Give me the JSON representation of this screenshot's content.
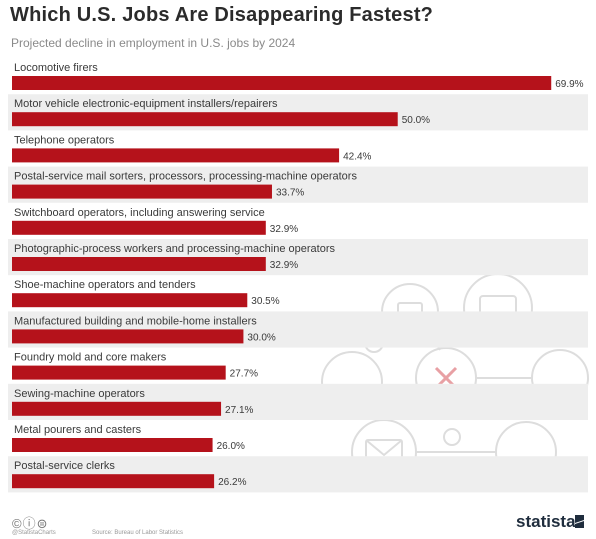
{
  "title": "Which U.S. Jobs Are Disappearing Fastest?",
  "subtitle": "Projected decline in employment in U.S. jobs by 2024",
  "chart_data": {
    "type": "bar",
    "orientation": "horizontal",
    "categories": [
      "Locomotive firers",
      "Motor vehicle electronic-equipment installers/repairers",
      "Telephone operators",
      "Postal-service mail sorters, processors, processing-machine operators",
      "Switchboard operators, including answering service",
      "Photographic-process workers and processing-machine operators",
      "Shoe-machine operators and tenders",
      "Manufactured building and mobile-home installers",
      "Foundry mold and core makers",
      "Sewing-machine operators",
      "Metal pourers and casters",
      "Postal-service clerks"
    ],
    "values": [
      69.9,
      50.0,
      42.4,
      33.7,
      32.9,
      32.9,
      30.5,
      30.0,
      27.7,
      27.1,
      26.0,
      26.2
    ],
    "value_labels": [
      "69.9%",
      "50.0%",
      "42.4%",
      "33.7%",
      "32.9%",
      "32.9%",
      "30.5%",
      "30.0%",
      "27.7%",
      "27.1%",
      "26.0%",
      "26.2%"
    ],
    "xlim": [
      0,
      70
    ],
    "grid": false,
    "bar_color": "#b5121b",
    "stripe_color": "#eeeeee"
  },
  "footer": {
    "license_icons": "©ⓘ⊜",
    "handle": "@StatistaCharts",
    "source": "Source: Bureau of Labor Statistics",
    "brand": "statista"
  },
  "colors": {
    "brand_dark": "#1f2d3d",
    "decoration": "#dcdcdc"
  }
}
